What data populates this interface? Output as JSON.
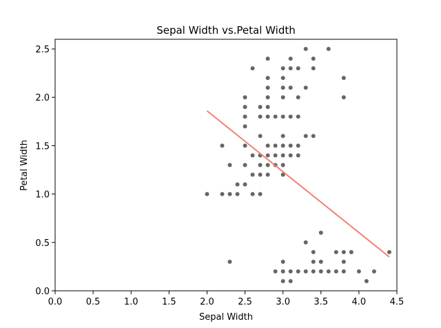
{
  "chart_data": {
    "type": "scatter",
    "title": "Sepal Width vs.Petal Width",
    "xlabel": "Sepal Width",
    "ylabel": "Petal Width",
    "xlim": [
      0.0,
      4.5
    ],
    "ylim": [
      0.0,
      2.6
    ],
    "grid": false,
    "legend": "none",
    "xticks": [
      "0.0",
      "0.5",
      "1.0",
      "1.5",
      "2.0",
      "2.5",
      "3.0",
      "3.5",
      "4.0",
      "4.5"
    ],
    "yticks": [
      "0.0",
      "0.5",
      "1.0",
      "1.5",
      "2.0",
      "2.5"
    ],
    "point_color": "#666666",
    "line_color": "#f08070",
    "points": [
      [
        2.3,
        0.3
      ],
      [
        2.9,
        0.2
      ],
      [
        3.0,
        0.1
      ],
      [
        3.0,
        0.2
      ],
      [
        3.0,
        0.3
      ],
      [
        3.1,
        0.1
      ],
      [
        3.1,
        0.2
      ],
      [
        3.2,
        0.2
      ],
      [
        3.3,
        0.2
      ],
      [
        3.3,
        0.5
      ],
      [
        3.4,
        0.2
      ],
      [
        3.4,
        0.3
      ],
      [
        3.4,
        0.4
      ],
      [
        3.5,
        0.2
      ],
      [
        3.5,
        0.3
      ],
      [
        3.5,
        0.6
      ],
      [
        3.6,
        0.2
      ],
      [
        3.7,
        0.2
      ],
      [
        3.7,
        0.4
      ],
      [
        3.8,
        0.2
      ],
      [
        3.8,
        0.3
      ],
      [
        3.8,
        0.4
      ],
      [
        3.9,
        0.4
      ],
      [
        4.0,
        0.2
      ],
      [
        4.1,
        0.1
      ],
      [
        4.2,
        0.2
      ],
      [
        4.4,
        0.4
      ],
      [
        2.0,
        1.0
      ],
      [
        2.2,
        1.0
      ],
      [
        2.2,
        1.5
      ],
      [
        2.3,
        1.0
      ],
      [
        2.3,
        1.3
      ],
      [
        2.4,
        1.0
      ],
      [
        2.4,
        1.1
      ],
      [
        2.5,
        1.1
      ],
      [
        2.5,
        1.3
      ],
      [
        2.5,
        1.5
      ],
      [
        2.6,
        1.0
      ],
      [
        2.6,
        1.2
      ],
      [
        2.6,
        1.4
      ],
      [
        2.7,
        1.0
      ],
      [
        2.7,
        1.2
      ],
      [
        2.7,
        1.3
      ],
      [
        2.7,
        1.4
      ],
      [
        2.7,
        1.6
      ],
      [
        2.8,
        1.2
      ],
      [
        2.8,
        1.3
      ],
      [
        2.8,
        1.4
      ],
      [
        2.8,
        1.5
      ],
      [
        2.9,
        1.3
      ],
      [
        2.9,
        1.4
      ],
      [
        2.9,
        1.5
      ],
      [
        3.0,
        1.2
      ],
      [
        3.0,
        1.3
      ],
      [
        3.0,
        1.4
      ],
      [
        3.0,
        1.5
      ],
      [
        3.0,
        1.6
      ],
      [
        3.1,
        1.4
      ],
      [
        3.1,
        1.5
      ],
      [
        3.2,
        1.5
      ],
      [
        3.2,
        1.4
      ],
      [
        3.3,
        1.6
      ],
      [
        3.4,
        1.6
      ],
      [
        2.5,
        1.7
      ],
      [
        2.5,
        1.8
      ],
      [
        2.5,
        1.9
      ],
      [
        2.5,
        2.0
      ],
      [
        2.6,
        2.3
      ],
      [
        2.7,
        1.8
      ],
      [
        2.7,
        1.9
      ],
      [
        2.8,
        1.8
      ],
      [
        2.8,
        1.9
      ],
      [
        2.8,
        2.0
      ],
      [
        2.8,
        2.1
      ],
      [
        2.8,
        2.2
      ],
      [
        2.8,
        2.4
      ],
      [
        2.9,
        1.8
      ],
      [
        3.0,
        1.8
      ],
      [
        3.0,
        2.0
      ],
      [
        3.0,
        2.1
      ],
      [
        3.0,
        2.2
      ],
      [
        3.0,
        2.3
      ],
      [
        3.1,
        1.8
      ],
      [
        3.1,
        2.1
      ],
      [
        3.1,
        2.3
      ],
      [
        3.1,
        2.4
      ],
      [
        3.2,
        1.8
      ],
      [
        3.2,
        2.0
      ],
      [
        3.2,
        2.3
      ],
      [
        3.3,
        2.1
      ],
      [
        3.3,
        2.5
      ],
      [
        3.4,
        2.3
      ],
      [
        3.4,
        2.4
      ],
      [
        3.6,
        2.5
      ],
      [
        3.8,
        2.0
      ],
      [
        3.8,
        2.2
      ]
    ],
    "fit_line": {
      "x": [
        2.0,
        4.4
      ],
      "y": [
        1.86,
        0.35
      ]
    }
  }
}
